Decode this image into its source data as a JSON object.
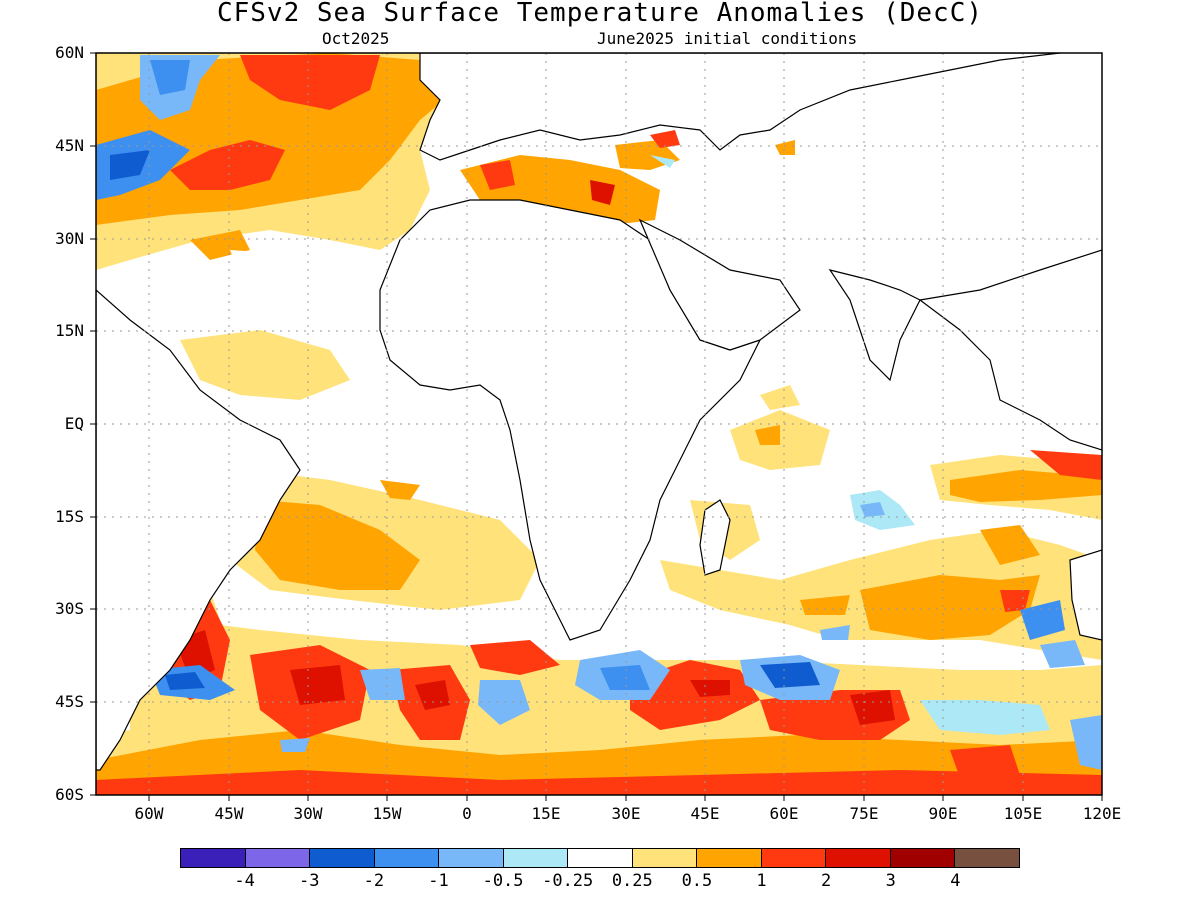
{
  "title": "CFSv2 Sea Surface Temperature Anomalies (DecC)",
  "subtitle_left": "Oct2025",
  "subtitle_right": "June2025 initial conditions",
  "lat_labels": [
    "60N",
    "45N",
    "30N",
    "15N",
    "EQ",
    "15S",
    "30S",
    "45S",
    "60S"
  ],
  "lon_labels": [
    "60W",
    "45W",
    "30W",
    "15W",
    "0",
    "15E",
    "30E",
    "45E",
    "60E",
    "75E",
    "90E",
    "105E",
    "120E"
  ],
  "colorbar": {
    "colors": [
      "#3a1fb8",
      "#7e66e8",
      "#0f5cd0",
      "#3d90f0",
      "#78b8f8",
      "#ace8f6",
      "#ffffff",
      "#ffe27a",
      "#ffa400",
      "#ff3a10",
      "#de1000",
      "#a00000",
      "#785040"
    ],
    "labels": [
      "-4",
      "-3",
      "-2",
      "-1",
      "-0.5",
      "-0.25",
      "0.25",
      "0.5",
      "1",
      "2",
      "3",
      "4"
    ]
  },
  "map": {
    "variable": "sea surface temperature anomaly",
    "lat_range": [
      -60,
      60
    ],
    "lon_range": [
      -70,
      120
    ],
    "ocean_base_color": "#ffffff",
    "coastline_color": "#000000",
    "grid_color": "#999999"
  }
}
